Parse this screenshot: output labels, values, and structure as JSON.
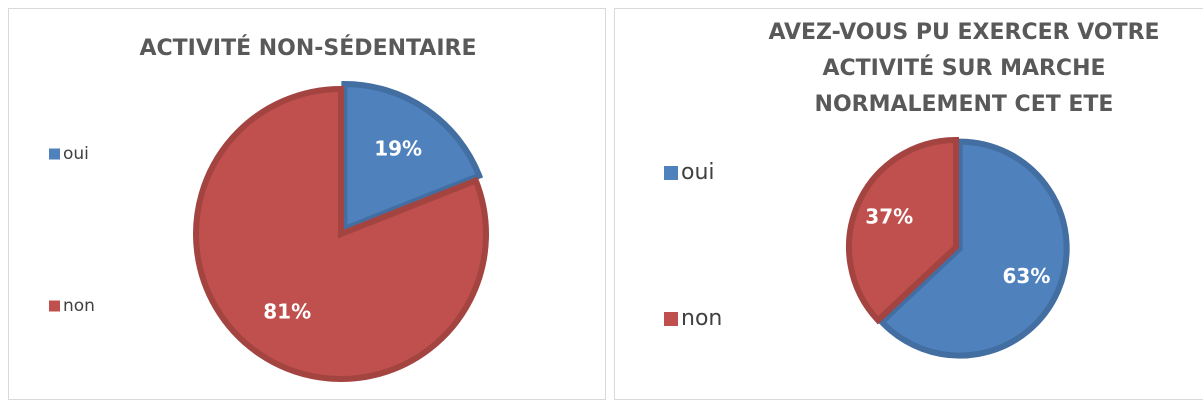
{
  "chart_data": [
    {
      "type": "pie",
      "title": "ACTIVITÉ NON-SÉDENTAIRE",
      "categories": [
        "oui",
        "non"
      ],
      "values": [
        19,
        81
      ],
      "value_labels": [
        "19%",
        "81%"
      ],
      "colors": [
        "#4f81bd",
        "#c0504d"
      ],
      "legend": "left"
    },
    {
      "type": "pie",
      "title": "AVEZ-VOUS PU EXERCER VOTRE ACTIVITÉ SUR MARCHE NORMALEMENT CET ETE",
      "categories": [
        "oui",
        "non"
      ],
      "values": [
        63,
        37
      ],
      "value_labels": [
        "63%",
        "37%"
      ],
      "colors": [
        "#4f81bd",
        "#c0504d"
      ],
      "legend": "left"
    }
  ]
}
